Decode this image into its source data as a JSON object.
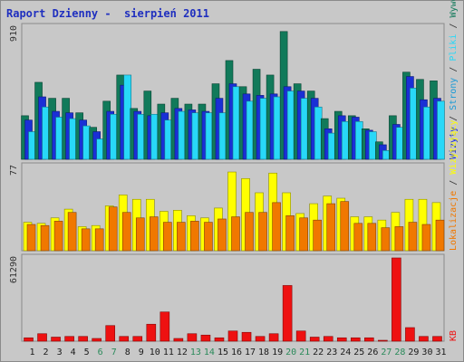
{
  "window": {
    "title": "Raport Dzienny -  sierpień 2011"
  },
  "colors": {
    "panel_bg": "#c8c8c8",
    "weekday_label": "#1a1a1a",
    "weekend_label": "#2a8a5a",
    "wizyty": "#1a2fd6",
    "strony": "#1a9ad6",
    "pliki": "#28d8f8",
    "wywolania": "#117a5a",
    "lokalizacje": "#f07800",
    "wizytujacy": "#ffff00",
    "kb": "#ee1111"
  },
  "chart_data": [
    {
      "type": "bar",
      "title": "Raport Dzienny -  sierpień 2011",
      "categories": [
        "1",
        "2",
        "3",
        "4",
        "5",
        "6",
        "7",
        "8",
        "9",
        "10",
        "11",
        "12",
        "13",
        "14",
        "15",
        "16",
        "17",
        "18",
        "19",
        "20",
        "21",
        "22",
        "23",
        "24",
        "25",
        "26",
        "27",
        "28",
        "29",
        "30",
        "31"
      ],
      "weekend_categories": [
        "6",
        "7",
        "13",
        "14",
        "20",
        "21",
        "27",
        "28"
      ],
      "ymax_label": "910",
      "ylim": [
        0,
        910
      ],
      "series": [
        {
          "name": "Wywołania",
          "color": "#117a5a",
          "values": [
            300,
            530,
            420,
            420,
            320,
            220,
            400,
            580,
            350,
            470,
            380,
            420,
            380,
            380,
            520,
            680,
            500,
            620,
            580,
            880,
            520,
            470,
            280,
            330,
            300,
            210,
            120,
            300,
            600,
            550,
            540
          ]
        },
        {
          "name": "Strony",
          "color": "#1a2fd6",
          "values": [
            270,
            430,
            330,
            320,
            270,
            190,
            330,
            510,
            330,
            300,
            320,
            350,
            340,
            330,
            420,
            520,
            450,
            440,
            450,
            500,
            470,
            420,
            210,
            300,
            290,
            200,
            100,
            240,
            570,
            410,
            420
          ]
        },
        {
          "name": "Pliki",
          "color": "#28d8f8",
          "values": [
            190,
            360,
            290,
            280,
            230,
            140,
            310,
            580,
            310,
            310,
            270,
            330,
            320,
            320,
            320,
            500,
            400,
            420,
            430,
            470,
            420,
            360,
            180,
            260,
            260,
            190,
            60,
            220,
            490,
            360,
            400
          ]
        }
      ],
      "legend": [
        "Wizyty",
        "Strony",
        "Pliki",
        "Wywołania"
      ]
    },
    {
      "type": "bar",
      "categories": [
        "1",
        "2",
        "3",
        "4",
        "5",
        "6",
        "7",
        "8",
        "9",
        "10",
        "11",
        "12",
        "13",
        "14",
        "15",
        "16",
        "17",
        "18",
        "19",
        "20",
        "21",
        "22",
        "23",
        "24",
        "25",
        "26",
        "27",
        "28",
        "29",
        "30",
        "31"
      ],
      "ymax_label": "77",
      "ylim": [
        0,
        77
      ],
      "series": [
        {
          "name": "Wizytujący",
          "color": "#ffff00",
          "values": [
            26,
            25,
            30,
            38,
            22,
            23,
            41,
            51,
            47,
            47,
            36,
            37,
            32,
            30,
            39,
            72,
            66,
            53,
            71,
            53,
            34,
            43,
            50,
            48,
            31,
            31,
            28,
            35,
            47,
            47,
            44
          ]
        },
        {
          "name": "Lokalizacje",
          "color": "#f07800",
          "values": [
            24,
            23,
            27,
            35,
            20,
            20,
            40,
            35,
            30,
            31,
            26,
            26,
            27,
            26,
            29,
            31,
            35,
            35,
            44,
            32,
            30,
            28,
            43,
            45,
            25,
            25,
            21,
            22,
            26,
            24,
            28
          ]
        }
      ],
      "legend": [
        "Lokalizacje",
        "Wizytujący"
      ]
    },
    {
      "type": "bar",
      "categories": [
        "1",
        "2",
        "3",
        "4",
        "5",
        "6",
        "7",
        "8",
        "9",
        "10",
        "11",
        "12",
        "13",
        "14",
        "15",
        "16",
        "17",
        "18",
        "19",
        "20",
        "21",
        "22",
        "23",
        "24",
        "25",
        "26",
        "27",
        "28",
        "29",
        "30",
        "31"
      ],
      "ymax_label": "61290",
      "ylim": [
        0,
        61290
      ],
      "series": [
        {
          "name": "KB",
          "color": "#ee1111",
          "values": [
            2500,
            5500,
            3000,
            3500,
            3500,
            2000,
            11500,
            3500,
            3500,
            12500,
            21500,
            2000,
            5500,
            4500,
            2500,
            7500,
            6500,
            3500,
            5500,
            41000,
            7500,
            3000,
            3500,
            2500,
            2500,
            2500,
            500,
            61290,
            10000,
            3500,
            3500
          ]
        }
      ],
      "legend": [
        "KB"
      ]
    }
  ]
}
